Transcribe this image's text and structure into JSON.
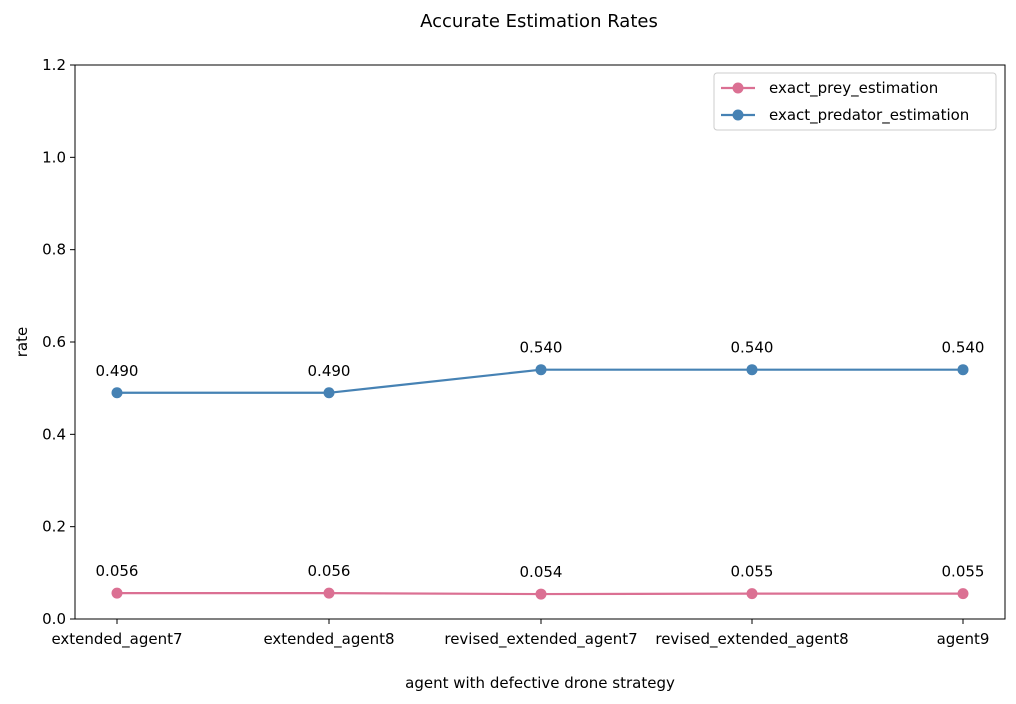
{
  "chart_data": {
    "type": "line",
    "title": "Accurate Estimation Rates",
    "xlabel": "agent with defective drone strategy",
    "ylabel": "rate",
    "categories": [
      "extended_agent7",
      "extended_agent8",
      "revised_extended_agent7",
      "revised_extended_agent8",
      "agent9"
    ],
    "ylim": [
      0,
      1.2
    ],
    "yticks": [
      "0.0",
      "0.2",
      "0.4",
      "0.6",
      "0.8",
      "1.0",
      "1.2"
    ],
    "grid": false,
    "legend_position": "top-right",
    "series": [
      {
        "name": "exact_prey_estimation",
        "color": "#db7093",
        "values": [
          0.056,
          0.056,
          0.054,
          0.055,
          0.055
        ],
        "labels": [
          "0.056",
          "0.056",
          "0.054",
          "0.055",
          "0.055"
        ]
      },
      {
        "name": "exact_predator_estimation",
        "color": "#4682b4",
        "values": [
          0.49,
          0.49,
          0.54,
          0.54,
          0.54
        ],
        "labels": [
          "0.490",
          "0.490",
          "0.540",
          "0.540",
          "0.540"
        ]
      }
    ]
  }
}
